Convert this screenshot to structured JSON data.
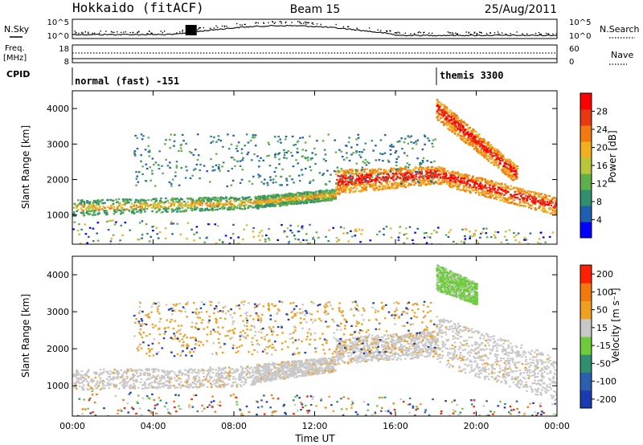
{
  "header": {
    "station": "Hokkaido (fitACF)",
    "beam": "Beam 15",
    "date": "25/Aug/2011"
  },
  "status_panels": {
    "nsky_label": "N.Sky",
    "nsky_ticks": [
      "10^5",
      "10^0"
    ],
    "nsearch_label": "N.Search",
    "nsearch_ticks": [
      "10^5",
      "10^0"
    ],
    "freq_label_line1": "Freq.",
    "freq_label_line2": "[MHz]",
    "freq_ticks": [
      "18",
      "8"
    ],
    "nave_label": "Nave",
    "nave_ticks": [
      "60",
      "0"
    ],
    "cpid_label": "CPID",
    "cpid_segments": [
      {
        "name": "normal (fast) -151",
        "start_hr": 0,
        "end_hr": 18
      },
      {
        "name": "themis 3300",
        "start_hr": 18,
        "end_hr": 24
      }
    ]
  },
  "chart_data": [
    {
      "type": "heatmap",
      "title": "",
      "xlabel": "Time UT",
      "ylabel": "Slant Range [km]",
      "x_ticks": [
        "00:00",
        "04:00",
        "08:00",
        "12:00",
        "16:00",
        "20:00",
        "00:00"
      ],
      "x_range_hours": [
        0,
        24
      ],
      "y_ticks": [
        1000,
        2000,
        3000,
        4000
      ],
      "ylim": [
        180,
        4500
      ],
      "colorbar": {
        "label": "Power [dB]",
        "ticks": [
          4,
          8,
          12,
          16,
          20,
          24,
          28
        ],
        "range": [
          0,
          32
        ],
        "colors": [
          "#0000ff",
          "#1f5fb0",
          "#2f8f6e",
          "#5fb04a",
          "#b8c63a",
          "#f0b020",
          "#f07a10",
          "#e83a10",
          "#ff0000"
        ]
      },
      "bands": [
        {
          "t0": 0.0,
          "t1": 9.0,
          "r0": 1000,
          "r1": 1450,
          "r0_end": 1200,
          "r1_end": 1550,
          "level": "mid"
        },
        {
          "t0": 9.0,
          "t1": 13.0,
          "r0": 1200,
          "r1": 1550,
          "r0_end": 1450,
          "r1_end": 1750,
          "level": "mid"
        },
        {
          "t0": 13.0,
          "t1": 18.0,
          "r0": 1600,
          "r1": 2300,
          "r0_end": 1900,
          "r1_end": 2400,
          "level": "high"
        },
        {
          "t0": 18.0,
          "t1": 24.0,
          "r0": 1900,
          "r1": 2400,
          "r0_end": 1000,
          "r1_end": 1500,
          "level": "high"
        },
        {
          "t0": 18.0,
          "t1": 22.0,
          "r0": 3700,
          "r1": 4300,
          "r0_end": 1900,
          "r1_end": 2400,
          "level": "high"
        },
        {
          "t0": 3.0,
          "t1": 18.0,
          "r0": 1800,
          "r1": 3300,
          "r0_end": 1900,
          "r1_end": 3300,
          "level": "low"
        },
        {
          "t0": 0.0,
          "t1": 24.0,
          "r0": 200,
          "r1": 900,
          "r0_end": 200,
          "r1_end": 600,
          "level": "sparse"
        }
      ]
    },
    {
      "type": "heatmap",
      "title": "",
      "xlabel": "Time UT",
      "ylabel": "Slant Range [km]",
      "x_ticks": [
        "00:00",
        "04:00",
        "08:00",
        "12:00",
        "16:00",
        "20:00",
        "00:00"
      ],
      "x_range_hours": [
        0,
        24
      ],
      "y_ticks": [
        1000,
        2000,
        3000,
        4000
      ],
      "ylim": [
        180,
        4500
      ],
      "colorbar": {
        "label": "Velocity [m s⁻¹]",
        "ticks": [
          200,
          100,
          50,
          15,
          -15,
          -50,
          -100,
          -200
        ],
        "colors": [
          "#1a3cb0",
          "#2a5fb0",
          "#2f8f6e",
          "#6ccc3a",
          "#c8c8c8",
          "#f0a020",
          "#f07a10",
          "#ff2000"
        ]
      },
      "bands": [
        {
          "t0": 0.0,
          "t1": 9.0,
          "r0": 900,
          "r1": 1450,
          "r0_end": 1000,
          "r1_end": 1550,
          "level": "gray"
        },
        {
          "t0": 9.0,
          "t1": 13.0,
          "r0": 1100,
          "r1": 1600,
          "r0_end": 1400,
          "r1_end": 1800,
          "level": "gray"
        },
        {
          "t0": 13.0,
          "t1": 18.0,
          "r0": 1600,
          "r1": 2300,
          "r0_end": 1800,
          "r1_end": 2500,
          "level": "gray"
        },
        {
          "t0": 18.0,
          "t1": 24.0,
          "r0": 1600,
          "r1": 2900,
          "r0_end": 600,
          "r1_end": 1800,
          "level": "gray"
        },
        {
          "t0": 18.0,
          "t1": 20.0,
          "r0": 3600,
          "r1": 4300,
          "r0_end": 3200,
          "r1_end": 3800,
          "level": "green"
        },
        {
          "t0": 3.0,
          "t1": 18.0,
          "r0": 1800,
          "r1": 3300,
          "r0_end": 1900,
          "r1_end": 3300,
          "level": "orange"
        },
        {
          "t0": 0.0,
          "t1": 24.0,
          "r0": 200,
          "r1": 900,
          "r0_end": 200,
          "r1_end": 600,
          "level": "sparse"
        }
      ]
    }
  ]
}
